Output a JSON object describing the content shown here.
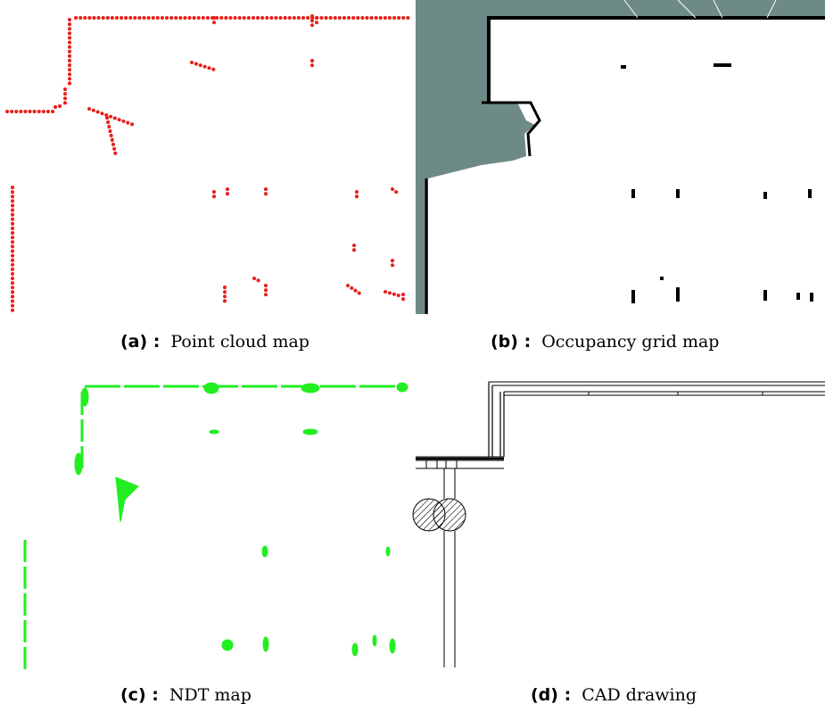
{
  "figures": [
    {
      "label": "(a) :",
      "caption": "Point cloud map"
    },
    {
      "label": "(b) :",
      "caption": "Occupancy grid map"
    },
    {
      "label": "(c) :",
      "caption": "NDT map"
    },
    {
      "label": "(d) :",
      "caption": "CAD drawing"
    }
  ]
}
